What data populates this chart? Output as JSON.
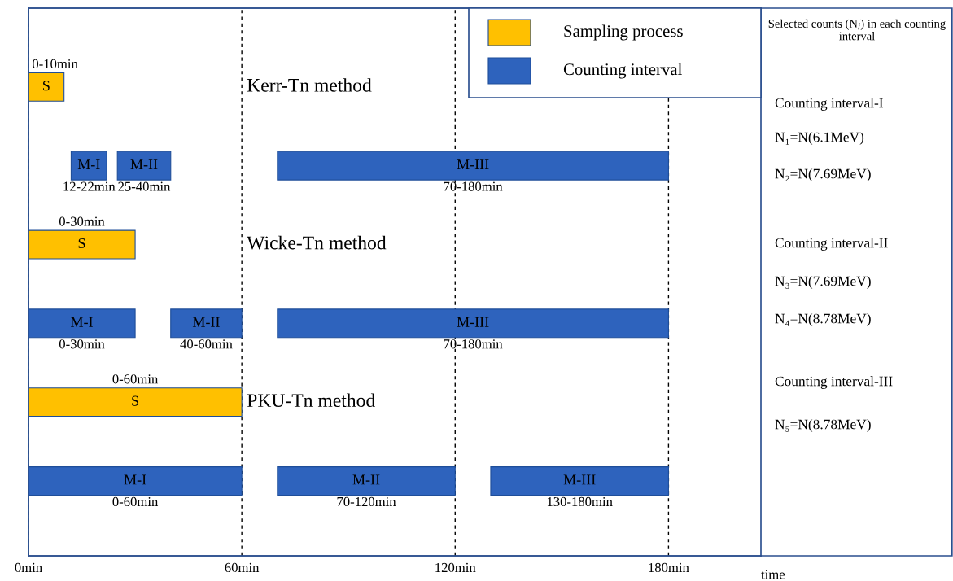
{
  "chart_data": {
    "type": "bar",
    "orientation": "horizontal",
    "categories": [
      "Kerr-Tn method",
      null,
      "Wicke-Tn method",
      null,
      "PKU-Tn method",
      null
    ],
    "series": [
      {
        "name": "S",
        "color": "#ffc000",
        "values": [
          10,
          null,
          30,
          null,
          60,
          null
        ],
        "base": [
          0,
          null,
          0,
          null,
          0,
          null
        ],
        "value_labels": [
          "0-10min",
          null,
          "0-30min",
          null,
          "0-60min",
          null
        ]
      },
      {
        "name": "M-I",
        "color": "#2e63bd",
        "values": [
          null,
          10,
          null,
          30,
          null,
          60
        ],
        "base": [
          null,
          12,
          null,
          0,
          null,
          0
        ],
        "value_labels": [
          null,
          "12-22min",
          null,
          "0-30min",
          null,
          "0-60min"
        ]
      },
      {
        "name": "M-II",
        "color": "#2e63bd",
        "values": [
          null,
          15,
          null,
          20,
          null,
          50
        ],
        "base": [
          null,
          25,
          null,
          40,
          null,
          70
        ],
        "value_labels": [
          null,
          "25-40min",
          null,
          "40-60min",
          null,
          "70-120min"
        ]
      },
      {
        "name": "M-III",
        "color": "#2e63bd",
        "values": [
          null,
          110,
          null,
          110,
          null,
          50
        ],
        "base": [
          null,
          70,
          null,
          70,
          null,
          130
        ],
        "value_labels": [
          null,
          "70-180min",
          null,
          "70-180min",
          null,
          "130-180min"
        ]
      }
    ],
    "xlim": [
      0,
      206
    ],
    "xticks": [
      {
        "value": 0,
        "label": "0min"
      },
      {
        "value": 60,
        "label": "60min"
      },
      {
        "value": 120,
        "label": "120min"
      },
      {
        "value": 180,
        "label": "180min"
      }
    ],
    "xlabel": "time",
    "grid": "x",
    "annotations": [
      "Sampling process",
      "Counting interval",
      "Selected counts (N$_{i}$) in each counting interval",
      "Counting interval-I",
      "N₁=N(6.1MeV)",
      "N₂=N(7.69MeV)",
      "Counting interval-II",
      "N₃=N(7.69MeV)",
      "N₄=N(8.78MeV)",
      "Counting interval-III",
      "N₅=N(8.78MeV)"
    ]
  }
}
